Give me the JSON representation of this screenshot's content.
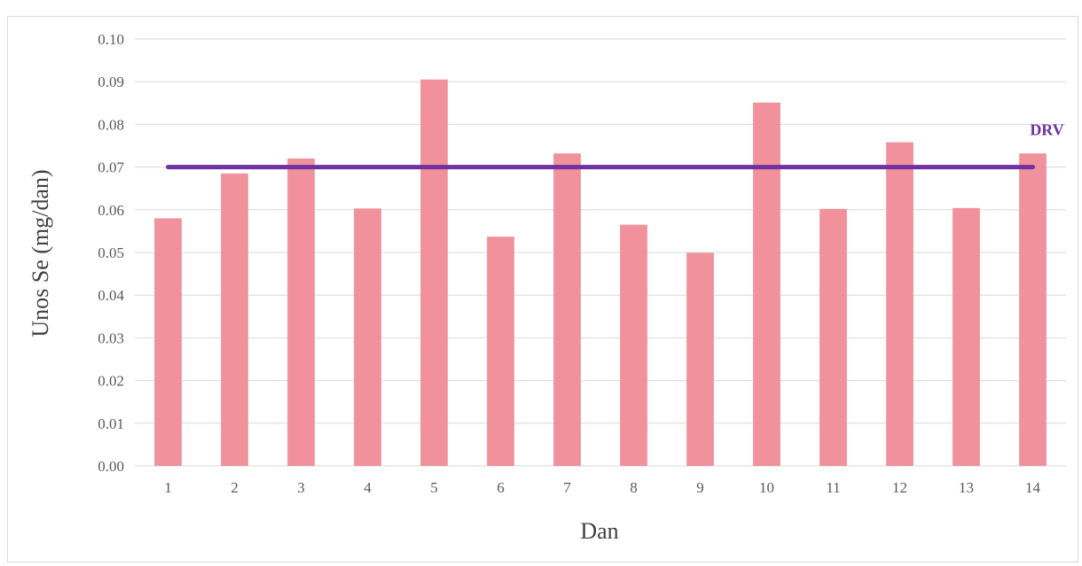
{
  "chart_data": {
    "type": "bar",
    "title": "",
    "xlabel": "Dan",
    "ylabel": "Unos Se (mg/dan)",
    "categories": [
      "1",
      "2",
      "3",
      "4",
      "5",
      "6",
      "7",
      "8",
      "9",
      "10",
      "11",
      "12",
      "13",
      "14"
    ],
    "series": [
      {
        "values": [
          0.058,
          0.0685,
          0.072,
          0.0603,
          0.0905,
          0.0537,
          0.0732,
          0.0565,
          0.0499,
          0.0851,
          0.0602,
          0.0758,
          0.0604,
          0.0732
        ]
      }
    ],
    "reference_line": {
      "label": "DRV",
      "value": 0.07
    },
    "ylim": [
      0,
      0.1
    ],
    "yticks": [
      "0.00",
      "0.01",
      "0.02",
      "0.03",
      "0.04",
      "0.05",
      "0.06",
      "0.07",
      "0.08",
      "0.09",
      "0.10"
    ],
    "grid": true,
    "legend": "none",
    "colors": {
      "bar": "#f0919b",
      "reference_line": "#7030a0",
      "grid": "#d9d9d9"
    }
  }
}
